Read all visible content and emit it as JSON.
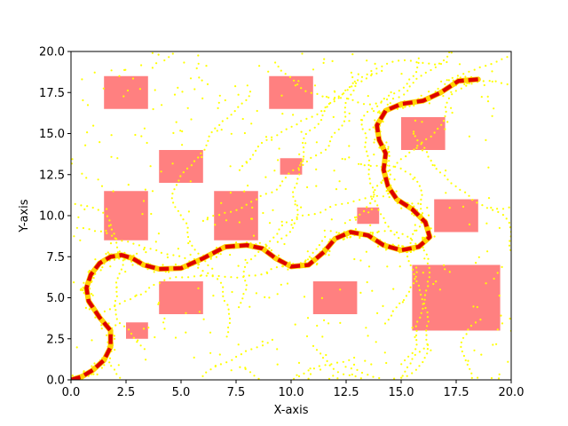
{
  "chart_data": {
    "type": "scatter",
    "xlabel": "X-axis",
    "ylabel": "Y-axis",
    "xlim": [
      0,
      20
    ],
    "ylim": [
      0,
      20
    ],
    "grid": false,
    "x_ticks": [
      "0.0",
      "2.5",
      "5.0",
      "7.5",
      "10.0",
      "12.5",
      "15.0",
      "17.5",
      "20.0"
    ],
    "y_ticks": [
      "0.0",
      "2.5",
      "5.0",
      "7.5",
      "10.0",
      "12.5",
      "15.0",
      "17.5",
      "20.0"
    ],
    "obstacle_color": "#ff8080",
    "point_color": "#ffff00",
    "path_color": "#dd0000",
    "guide_color": "#ffd200",
    "obstacles": [
      {
        "x": 1.5,
        "y": 16.5,
        "w": 2.0,
        "h": 2.0
      },
      {
        "x": 9.0,
        "y": 16.5,
        "w": 2.0,
        "h": 2.0
      },
      {
        "x": 15.0,
        "y": 14.0,
        "w": 2.0,
        "h": 2.0
      },
      {
        "x": 4.0,
        "y": 12.0,
        "w": 2.0,
        "h": 2.0
      },
      {
        "x": 9.5,
        "y": 12.5,
        "w": 1.0,
        "h": 1.0
      },
      {
        "x": 1.5,
        "y": 8.5,
        "w": 2.0,
        "h": 3.0
      },
      {
        "x": 6.5,
        "y": 8.5,
        "w": 2.0,
        "h": 3.0
      },
      {
        "x": 13.0,
        "y": 9.5,
        "w": 1.0,
        "h": 1.0
      },
      {
        "x": 16.5,
        "y": 9.0,
        "w": 2.0,
        "h": 2.0
      },
      {
        "x": 15.5,
        "y": 3.0,
        "w": 4.0,
        "h": 4.0
      },
      {
        "x": 4.0,
        "y": 4.0,
        "w": 2.0,
        "h": 2.0
      },
      {
        "x": 11.0,
        "y": 4.0,
        "w": 2.0,
        "h": 2.0
      },
      {
        "x": 2.5,
        "y": 2.5,
        "w": 1.0,
        "h": 1.0
      }
    ],
    "path": [
      [
        0.0,
        0.0
      ],
      [
        0.5,
        0.2
      ],
      [
        1.0,
        0.6
      ],
      [
        1.5,
        1.2
      ],
      [
        1.8,
        2.0
      ],
      [
        1.8,
        3.0
      ],
      [
        1.3,
        3.8
      ],
      [
        0.8,
        4.8
      ],
      [
        0.7,
        5.6
      ],
      [
        0.9,
        6.4
      ],
      [
        1.3,
        7.1
      ],
      [
        1.8,
        7.5
      ],
      [
        2.3,
        7.6
      ],
      [
        2.8,
        7.4
      ],
      [
        3.3,
        7.0
      ],
      [
        4.0,
        6.75
      ],
      [
        5.0,
        6.8
      ],
      [
        6.0,
        7.4
      ],
      [
        7.0,
        8.1
      ],
      [
        8.0,
        8.2
      ],
      [
        8.7,
        8.0
      ],
      [
        9.3,
        7.4
      ],
      [
        10.0,
        6.9
      ],
      [
        10.8,
        7.0
      ],
      [
        11.5,
        7.8
      ],
      [
        12.0,
        8.6
      ],
      [
        12.7,
        9.0
      ],
      [
        13.5,
        8.8
      ],
      [
        14.2,
        8.2
      ],
      [
        15.0,
        7.9
      ],
      [
        15.8,
        8.1
      ],
      [
        16.3,
        8.7
      ],
      [
        16.1,
        9.6
      ],
      [
        15.5,
        10.4
      ],
      [
        14.8,
        11.0
      ],
      [
        14.4,
        11.8
      ],
      [
        14.2,
        12.8
      ],
      [
        14.3,
        13.8
      ],
      [
        14.0,
        14.6
      ],
      [
        13.9,
        15.5
      ],
      [
        14.3,
        16.4
      ],
      [
        15.0,
        16.8
      ],
      [
        16.0,
        17.0
      ],
      [
        16.8,
        17.5
      ],
      [
        17.6,
        18.2
      ],
      [
        18.5,
        18.3
      ]
    ]
  }
}
